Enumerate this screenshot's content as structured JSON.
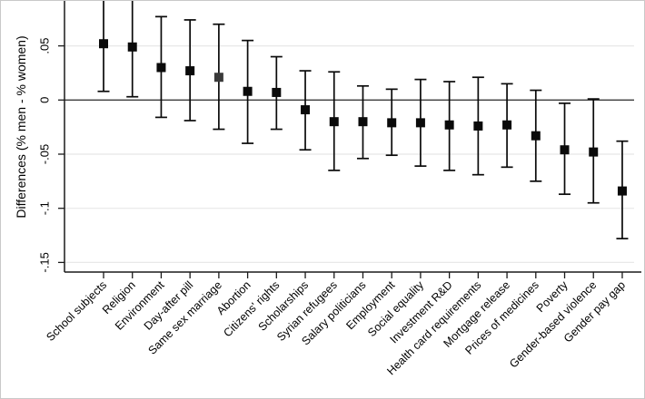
{
  "figure": {
    "background": "#ffffff",
    "border_color": "#c9c9c9",
    "axis_color": "#1a1a1a",
    "grid_color": "#e8e8e8",
    "zero_line_color": "#3a3a3a",
    "marker_color": "#0a0a0a",
    "muted_marker_color": "#3a3a3a"
  },
  "chart_data": {
    "type": "scatter",
    "subtype": "coefficient-plot-with-95ci-error-bars",
    "title": "",
    "xlabel": "",
    "ylabel": "Differences (% men - % women)",
    "legend": "none",
    "grid": "horizontal light gridlines at labeled ticks; dark horizontal reference line at 0",
    "ylim_visible": [
      -0.159,
      0.092
    ],
    "yticks": [
      0.05,
      0,
      -0.05,
      -0.1,
      -0.15
    ],
    "ytick_labels": [
      ".05",
      "0",
      "-.05",
      "-.1",
      "-.15"
    ],
    "note": "upper whiskers of first two categories are clipped by the top edge of the image",
    "points": [
      {
        "label": "School subjects",
        "value": 0.052,
        "lo": 0.008,
        "hi": 0.097
      },
      {
        "label": "Religion",
        "value": 0.049,
        "lo": 0.003,
        "hi": 0.095
      },
      {
        "label": "Environment",
        "value": 0.03,
        "lo": -0.016,
        "hi": 0.077
      },
      {
        "label": "Day-after pill",
        "value": 0.027,
        "lo": -0.019,
        "hi": 0.074
      },
      {
        "label": "Same sex marriage",
        "value": 0.021,
        "lo": -0.027,
        "hi": 0.07,
        "muted": true
      },
      {
        "label": "Abortion",
        "value": 0.008,
        "lo": -0.04,
        "hi": 0.055
      },
      {
        "label": "Citizens' rights",
        "value": 0.007,
        "lo": -0.027,
        "hi": 0.04
      },
      {
        "label": "Scholarships",
        "value": -0.009,
        "lo": -0.046,
        "hi": 0.027
      },
      {
        "label": "Syrian refugees",
        "value": -0.02,
        "lo": -0.065,
        "hi": 0.026
      },
      {
        "label": "Salary politicians",
        "value": -0.02,
        "lo": -0.054,
        "hi": 0.013
      },
      {
        "label": "Employment",
        "value": -0.021,
        "lo": -0.051,
        "hi": 0.01
      },
      {
        "label": "Social equality",
        "value": -0.021,
        "lo": -0.061,
        "hi": 0.019
      },
      {
        "label": "Investment R&D",
        "value": -0.023,
        "lo": -0.065,
        "hi": 0.017
      },
      {
        "label": "Health card requirements",
        "value": -0.024,
        "lo": -0.069,
        "hi": 0.021
      },
      {
        "label": "Mortgage release",
        "value": -0.023,
        "lo": -0.062,
        "hi": 0.015
      },
      {
        "label": "Prices of medicines",
        "value": -0.033,
        "lo": -0.075,
        "hi": 0.009
      },
      {
        "label": "Poverty",
        "value": -0.046,
        "lo": -0.087,
        "hi": -0.003
      },
      {
        "label": "Gender-based violence",
        "value": -0.048,
        "lo": -0.095,
        "hi": 0.001
      },
      {
        "label": "Gender pay gap",
        "value": -0.084,
        "lo": -0.128,
        "hi": -0.038
      }
    ]
  }
}
